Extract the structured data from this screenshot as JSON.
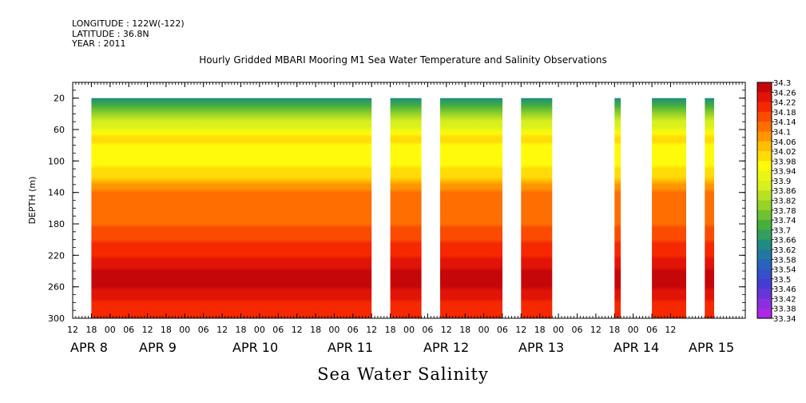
{
  "header": {
    "longitude": "LONGITUDE : 122W(-122)",
    "latitude": "LATITUDE : 36.8N",
    "year": "YEAR : 2011"
  },
  "chart_data": {
    "type": "heatmap",
    "title": "Hourly Gridded MBARI Mooring M1 Sea Water Temperature and Salinity Observations",
    "xlabel": "Sea Water Salinity",
    "ylabel": "DEPTH (m)",
    "ylim": [
      300,
      0
    ],
    "y_ticks": [
      "20",
      "60",
      "100",
      "140",
      "180",
      "220",
      "260",
      "300"
    ],
    "x_hour_ticks": [
      "12",
      "18",
      "00",
      "06",
      "12",
      "18",
      "00",
      "06",
      "12",
      "18",
      "00",
      "06",
      "12",
      "18",
      "00",
      "06",
      "12",
      "18",
      "00",
      "06",
      "12",
      "18",
      "00",
      "06",
      "12",
      "18",
      "00",
      "06",
      "12",
      "18",
      "00",
      "06",
      "12"
    ],
    "x_date_labels": [
      "APR  8",
      "APR  9",
      "APR 10",
      "APR 11",
      "APR 12",
      "APR 13",
      "APR 14",
      "APR 15"
    ],
    "data_segments_hours": [
      [
        18,
        108
      ],
      [
        114,
        124
      ],
      [
        130,
        150
      ],
      [
        156,
        166
      ],
      [
        186,
        188
      ],
      [
        198,
        209
      ],
      [
        215,
        218
      ]
    ],
    "depth_profile": {
      "depth_m": [
        20,
        30,
        40,
        50,
        60,
        70,
        80,
        90,
        100,
        110,
        120,
        130,
        140,
        150,
        160,
        170,
        180,
        190,
        200,
        210,
        220,
        230,
        240,
        250,
        260,
        270,
        280,
        290,
        300
      ],
      "salinity": [
        33.62,
        33.7,
        33.8,
        33.86,
        33.9,
        33.98,
        33.96,
        33.94,
        33.94,
        33.97,
        34.0,
        34.05,
        34.1,
        34.12,
        34.12,
        34.11,
        34.12,
        34.14,
        34.16,
        34.18,
        34.2,
        34.22,
        34.25,
        34.26,
        34.25,
        34.22,
        34.2,
        34.2,
        34.2
      ]
    },
    "colorbar": {
      "min": 33.34,
      "max": 34.3,
      "step": 0.04,
      "labels": [
        "34.3",
        "34.26",
        "34.22",
        "34.18",
        "34.14",
        "34.1",
        "34.06",
        "34.02",
        "33.98",
        "33.94",
        "33.9",
        "33.86",
        "33.82",
        "33.78",
        "33.74",
        "33.7",
        "33.66",
        "33.62",
        "33.58",
        "33.54",
        "33.5",
        "33.46",
        "33.42",
        "33.38",
        "33.34"
      ]
    }
  }
}
